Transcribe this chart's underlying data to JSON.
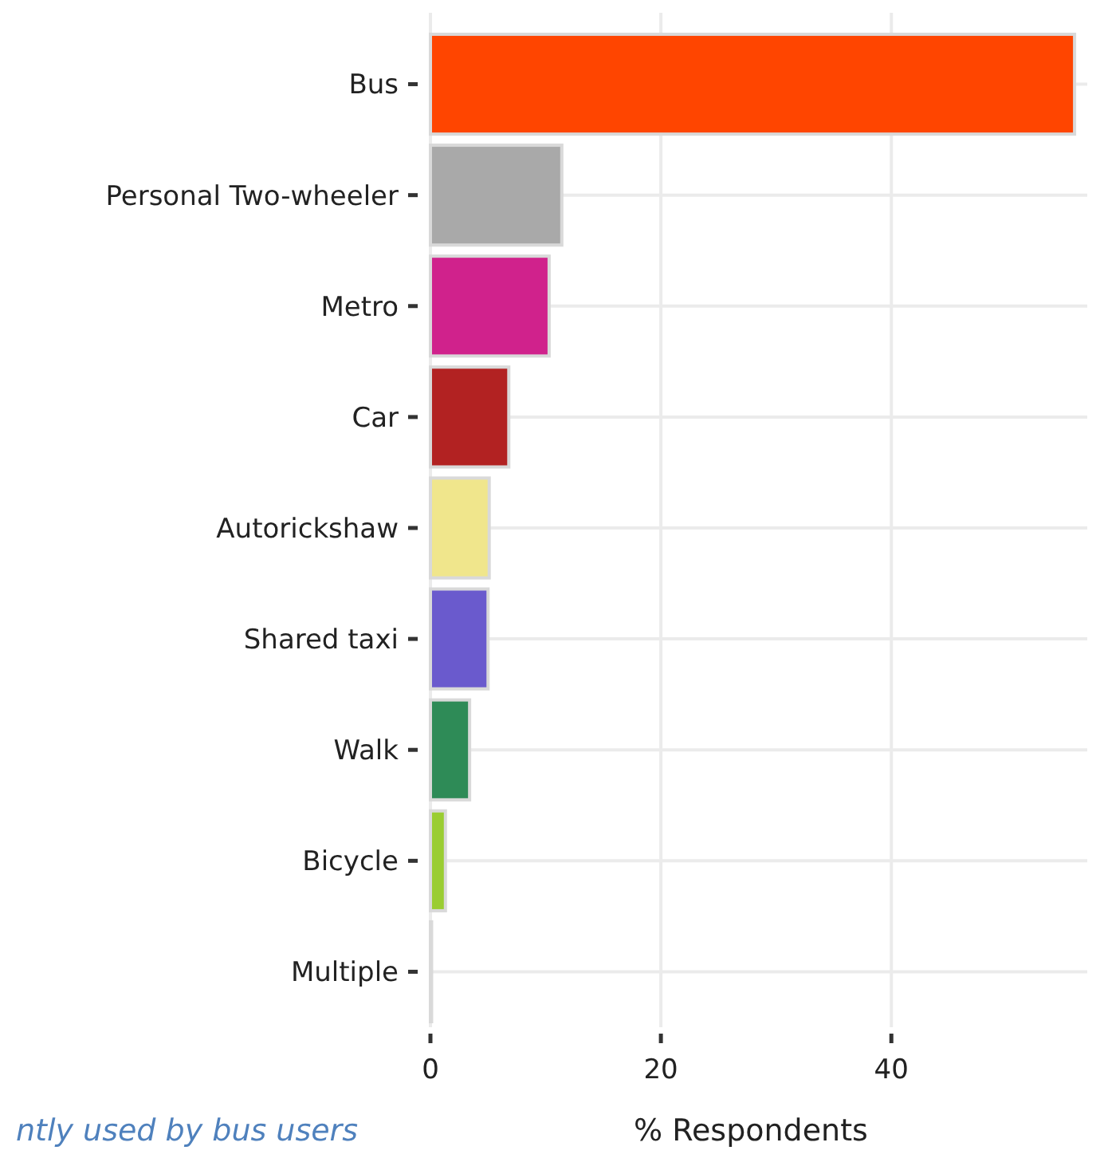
{
  "chart_data": {
    "type": "bar",
    "orientation": "horizontal",
    "xlabel": "% Respondents",
    "categories": [
      "Bus",
      "Personal Two-wheeler",
      "Metro",
      "Car",
      "Autorickshaw",
      "Shared taxi",
      "Walk",
      "Bicycle",
      "Multiple"
    ],
    "values": [
      55.9,
      11.4,
      10.3,
      6.8,
      5.1,
      5.0,
      3.4,
      1.3,
      0.1
    ],
    "colors": [
      "#ff4500",
      "#a9a9a9",
      "#d0228c",
      "#b22222",
      "#f0e68c",
      "#6a5acd",
      "#2e8b57",
      "#9acd32",
      "#d3d3d3"
    ],
    "xlim": [
      0,
      57
    ],
    "xticks": [
      0,
      20,
      40
    ],
    "grid": true,
    "annotations": [
      "ntly used by bus users"
    ]
  }
}
